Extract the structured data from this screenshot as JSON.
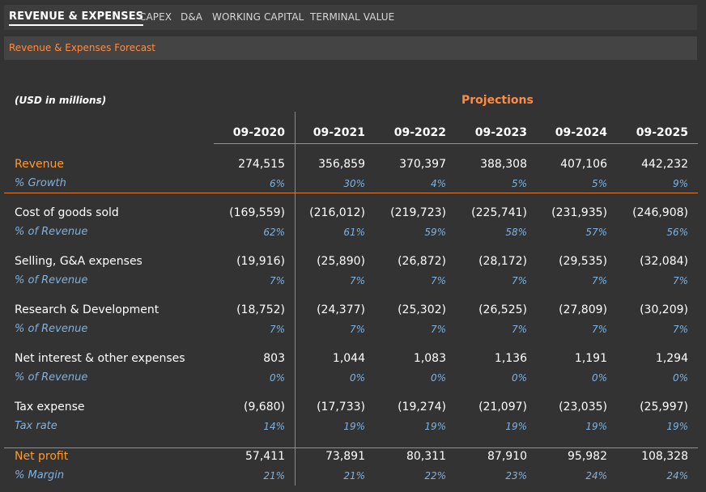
{
  "tabs": [
    {
      "label": "REVENUE & EXPENSES",
      "active": true
    },
    {
      "label": "CAPEX",
      "active": false
    },
    {
      "label": "D&A",
      "active": false
    },
    {
      "label": "WORKING CAPITAL",
      "active": false
    },
    {
      "label": "TERMINAL VALUE",
      "active": false
    }
  ],
  "subtitle": "Revenue & Expenses Forecast",
  "units_label": "(USD in millions)",
  "projections_label": "Projections",
  "periods": [
    "09-2020",
    "09-2021",
    "09-2022",
    "09-2023",
    "09-2024",
    "09-2025"
  ],
  "rows": [
    {
      "label": "Revenue",
      "highlight": true,
      "values": [
        "274,515",
        "356,859",
        "370,397",
        "388,308",
        "407,106",
        "442,232"
      ],
      "sub_label": "% Growth",
      "sub_values": [
        "6%",
        "30%",
        "4%",
        "5%",
        "5%",
        "9%"
      ]
    },
    {
      "label": "Cost of goods sold",
      "highlight": false,
      "values": [
        "(169,559)",
        "(216,012)",
        "(219,723)",
        "(225,741)",
        "(231,935)",
        "(246,908)"
      ],
      "sub_label": "% of Revenue",
      "sub_values": [
        "62%",
        "61%",
        "59%",
        "58%",
        "57%",
        "56%"
      ]
    },
    {
      "label": "Selling, G&A expenses",
      "highlight": false,
      "values": [
        "(19,916)",
        "(25,890)",
        "(26,872)",
        "(28,172)",
        "(29,535)",
        "(32,084)"
      ],
      "sub_label": "% of Revenue",
      "sub_values": [
        "7%",
        "7%",
        "7%",
        "7%",
        "7%",
        "7%"
      ]
    },
    {
      "label": "Research & Development",
      "highlight": false,
      "values": [
        "(18,752)",
        "(24,377)",
        "(25,302)",
        "(26,525)",
        "(27,809)",
        "(30,209)"
      ],
      "sub_label": "% of Revenue",
      "sub_values": [
        "7%",
        "7%",
        "7%",
        "7%",
        "7%",
        "7%"
      ]
    },
    {
      "label": "Net interest & other expenses",
      "highlight": false,
      "values": [
        "803",
        "1,044",
        "1,083",
        "1,136",
        "1,191",
        "1,294"
      ],
      "sub_label": "% of Revenue",
      "sub_values": [
        "0%",
        "0%",
        "0%",
        "0%",
        "0%",
        "0%"
      ]
    },
    {
      "label": "Tax expense",
      "highlight": false,
      "values": [
        "(9,680)",
        "(17,733)",
        "(19,274)",
        "(21,097)",
        "(23,035)",
        "(25,997)"
      ],
      "sub_label": "Tax rate",
      "sub_values": [
        "14%",
        "19%",
        "19%",
        "19%",
        "19%",
        "19%"
      ]
    },
    {
      "label": "Net profit",
      "highlight": true,
      "values": [
        "57,411",
        "73,891",
        "80,311",
        "87,910",
        "95,982",
        "108,328"
      ],
      "sub_label": "% Margin",
      "sub_values": [
        "21%",
        "21%",
        "22%",
        "23%",
        "24%",
        "24%"
      ]
    }
  ],
  "colors": {
    "accent": "#ff8c42",
    "label_highlight": "#ff9a2e",
    "sub_text": "#7fb2e0",
    "background": "#333333"
  }
}
